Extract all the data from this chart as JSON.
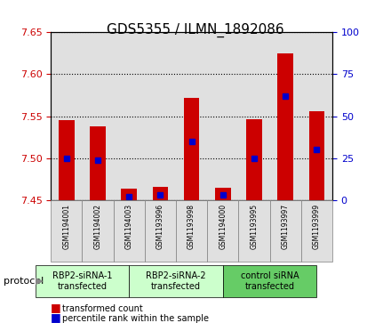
{
  "title": "GDS5355 / ILMN_1892086",
  "samples": [
    "GSM1194001",
    "GSM1194002",
    "GSM1194003",
    "GSM1193996",
    "GSM1193998",
    "GSM1194000",
    "GSM1193995",
    "GSM1193997",
    "GSM1193999"
  ],
  "transformed_count": [
    7.545,
    7.538,
    7.464,
    7.466,
    7.572,
    7.465,
    7.547,
    7.625,
    7.556
  ],
  "percentile_rank": [
    25,
    24,
    2,
    3,
    35,
    3,
    25,
    62,
    30
  ],
  "ylim": [
    7.45,
    7.65
  ],
  "y2lim": [
    0,
    100
  ],
  "yticks": [
    7.45,
    7.5,
    7.55,
    7.6,
    7.65
  ],
  "y2ticks": [
    0,
    25,
    50,
    75,
    100
  ],
  "bar_color": "#cc0000",
  "dot_color": "#0000cc",
  "protocol_groups": [
    {
      "label": "RBP2-siRNA-1\ntransfected",
      "indices": [
        0,
        1,
        2
      ],
      "color": "#ccffcc"
    },
    {
      "label": "RBP2-siRNA-2\ntransfected",
      "indices": [
        3,
        4,
        5
      ],
      "color": "#ccffcc"
    },
    {
      "label": "control siRNA\ntransfected",
      "indices": [
        6,
        7,
        8
      ],
      "color": "#66cc66"
    }
  ],
  "protocol_label": "protocol",
  "legend_items": [
    {
      "color": "#cc0000",
      "label": "transformed count"
    },
    {
      "color": "#0000cc",
      "label": "percentile rank within the sample"
    }
  ],
  "bg_color": "#e0e0e0",
  "grid_color": "#000000",
  "ylabel_color": "#cc0000",
  "y2label_color": "#0000cc"
}
